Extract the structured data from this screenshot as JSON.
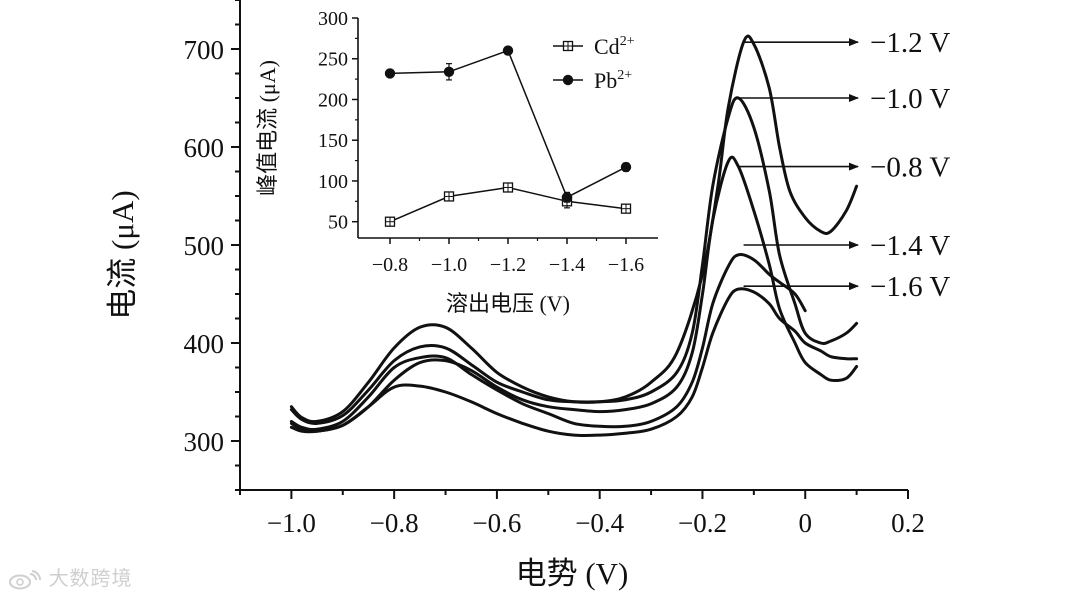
{
  "colors": {
    "line": "#111111",
    "axis": "#111111",
    "background": "#ffffff",
    "watermark": "#cfcfcf"
  },
  "watermark": {
    "text": "大数跨境",
    "icon": "weibo-logo-icon"
  },
  "chart_data": [
    {
      "type": "line",
      "id": "main",
      "title": "",
      "xlabel": "电势 (V)",
      "ylabel": "电流 (μA)",
      "xlim": [
        -1.1,
        0.2
      ],
      "ylim": [
        250,
        750
      ],
      "xticks": [
        -1.0,
        -0.8,
        -0.6,
        -0.4,
        -0.2,
        0,
        0.2
      ],
      "xtick_labels": [
        "−1.0",
        "−0.8",
        "−0.6",
        "−0.4",
        "−0.2",
        "0",
        "0.2"
      ],
      "yticks": [
        300,
        400,
        500,
        600,
        700
      ],
      "ytick_labels": [
        "300",
        "400",
        "500",
        "600",
        "700"
      ],
      "grid": false,
      "legend": "none",
      "series": [
        {
          "name": "−1.2 V",
          "x": [
            -1.0,
            -0.98,
            -0.95,
            -0.9,
            -0.85,
            -0.8,
            -0.75,
            -0.7,
            -0.65,
            -0.6,
            -0.55,
            -0.5,
            -0.45,
            -0.4,
            -0.35,
            -0.3,
            -0.25,
            -0.2,
            -0.17,
            -0.15,
            -0.12,
            -0.1,
            -0.07,
            -0.05,
            -0.03,
            0,
            0.03,
            0.05,
            0.08,
            0.1
          ],
          "y": [
            335,
            324,
            320,
            330,
            360,
            395,
            416,
            416,
            395,
            370,
            355,
            345,
            340,
            340,
            345,
            360,
            390,
            470,
            560,
            640,
            707,
            705,
            660,
            600,
            555,
            528,
            514,
            514,
            535,
            560
          ]
        },
        {
          "name": "−1.0 V",
          "x": [
            -1.0,
            -0.98,
            -0.95,
            -0.9,
            -0.85,
            -0.8,
            -0.75,
            -0.7,
            -0.65,
            -0.6,
            -0.55,
            -0.5,
            -0.45,
            -0.4,
            -0.35,
            -0.3,
            -0.25,
            -0.22,
            -0.2,
            -0.18,
            -0.15,
            -0.13,
            -0.1,
            -0.07,
            -0.05,
            -0.02,
            0,
            0.03,
            0.05,
            0.08,
            0.1
          ],
          "y": [
            332,
            322,
            318,
            326,
            352,
            382,
            396,
            395,
            378,
            360,
            350,
            342,
            340,
            340,
            342,
            350,
            370,
            410,
            480,
            560,
            630,
            650,
            620,
            555,
            490,
            440,
            410,
            400,
            402,
            410,
            420
          ]
        },
        {
          "name": "−0.8 V",
          "x": [
            -1.0,
            -0.98,
            -0.95,
            -0.9,
            -0.85,
            -0.8,
            -0.75,
            -0.7,
            -0.65,
            -0.6,
            -0.55,
            -0.5,
            -0.45,
            -0.4,
            -0.35,
            -0.3,
            -0.25,
            -0.22,
            -0.2,
            -0.18,
            -0.15,
            -0.13,
            -0.1,
            -0.07,
            -0.05,
            -0.02,
            0,
            0.03,
            0.05,
            0.08,
            0.1
          ],
          "y": [
            318,
            312,
            310,
            316,
            335,
            362,
            380,
            382,
            372,
            355,
            342,
            335,
            332,
            330,
            332,
            338,
            355,
            390,
            450,
            525,
            585,
            580,
            535,
            480,
            435,
            400,
            380,
            368,
            362,
            364,
            376
          ]
        },
        {
          "name": "−1.4 V",
          "x": [
            -1.0,
            -0.98,
            -0.95,
            -0.9,
            -0.85,
            -0.8,
            -0.75,
            -0.7,
            -0.65,
            -0.6,
            -0.55,
            -0.5,
            -0.45,
            -0.4,
            -0.35,
            -0.3,
            -0.25,
            -0.22,
            -0.2,
            -0.18,
            -0.15,
            -0.13,
            -0.1,
            -0.07,
            -0.05,
            -0.02,
            0
          ],
          "y": [
            320,
            314,
            312,
            320,
            345,
            375,
            385,
            385,
            368,
            352,
            338,
            328,
            318,
            315,
            315,
            320,
            335,
            360,
            395,
            440,
            478,
            490,
            485,
            470,
            462,
            450,
            433
          ]
        },
        {
          "name": "−1.6 V",
          "x": [
            -1.0,
            -0.98,
            -0.95,
            -0.9,
            -0.85,
            -0.8,
            -0.75,
            -0.7,
            -0.65,
            -0.6,
            -0.55,
            -0.5,
            -0.45,
            -0.4,
            -0.35,
            -0.3,
            -0.25,
            -0.22,
            -0.2,
            -0.18,
            -0.15,
            -0.13,
            -0.1,
            -0.07,
            -0.05,
            -0.02,
            0,
            0.03,
            0.05,
            0.08,
            0.1
          ],
          "y": [
            314,
            310,
            310,
            316,
            335,
            355,
            356,
            350,
            340,
            328,
            318,
            310,
            306,
            306,
            308,
            312,
            325,
            345,
            375,
            410,
            445,
            455,
            452,
            440,
            425,
            412,
            400,
            392,
            386,
            384,
            384
          ]
        }
      ],
      "annotations": [
        {
          "text": "−1.2 V",
          "x": -0.12,
          "y": 707
        },
        {
          "text": "−1.0 V",
          "x": -0.13,
          "y": 650
        },
        {
          "text": "−0.8 V",
          "x": -0.13,
          "y": 580
        },
        {
          "text": "−1.4 V",
          "x": -0.12,
          "y": 500
        },
        {
          "text": "−1.6 V",
          "x": -0.12,
          "y": 458
        }
      ]
    },
    {
      "type": "line",
      "id": "inset",
      "title": "",
      "xlabel": "溶出电压 (V)",
      "ylabel": "峰值电流 (μA)",
      "categories": [
        "−0.8",
        "−1.0",
        "−1.2",
        "−1.4",
        "−1.6"
      ],
      "ylim": [
        30,
        300
      ],
      "yticks": [
        50,
        100,
        150,
        200,
        250,
        300
      ],
      "ytick_labels": [
        "50",
        "100",
        "150",
        "200",
        "250",
        "300"
      ],
      "grid": false,
      "legend": "top-right",
      "series": [
        {
          "name": "Cd",
          "name_sup": "2+",
          "marker": "square-cross",
          "values": [
            50,
            81,
            92,
            75,
            66
          ],
          "err": [
            2,
            3,
            3,
            8,
            3
          ]
        },
        {
          "name": "Pb",
          "name_sup": "2+",
          "marker": "filled-circle",
          "values": [
            232,
            234,
            260,
            80,
            117
          ],
          "err": [
            4,
            10,
            3,
            6,
            5
          ]
        }
      ]
    }
  ]
}
